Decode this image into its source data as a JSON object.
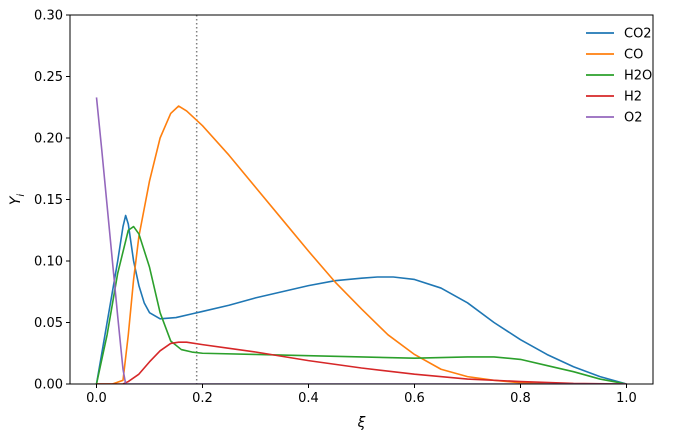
{
  "chart_data": {
    "type": "line",
    "xlabel": "ξ",
    "ylabel": "Y_i",
    "xlim": [
      -0.05,
      1.05
    ],
    "ylim": [
      0.0,
      0.3
    ],
    "xticks": [
      "0.0",
      "0.2",
      "0.4",
      "0.6",
      "0.8",
      "1.0"
    ],
    "yticks": [
      "0.00",
      "0.05",
      "0.10",
      "0.15",
      "0.20",
      "0.25",
      "0.30"
    ],
    "vline": 0.189,
    "legend_position": "top-right",
    "series": [
      {
        "name": "CO2",
        "color": "#1f77b4",
        "x": [
          0.0,
          0.02,
          0.04,
          0.05,
          0.055,
          0.06,
          0.07,
          0.08,
          0.09,
          0.1,
          0.12,
          0.15,
          0.18,
          0.2,
          0.25,
          0.3,
          0.35,
          0.4,
          0.45,
          0.5,
          0.53,
          0.56,
          0.6,
          0.65,
          0.7,
          0.75,
          0.8,
          0.85,
          0.9,
          0.95,
          1.0
        ],
        "values": [
          0.0,
          0.05,
          0.1,
          0.128,
          0.137,
          0.13,
          0.1,
          0.08,
          0.066,
          0.058,
          0.053,
          0.054,
          0.057,
          0.059,
          0.064,
          0.07,
          0.075,
          0.08,
          0.084,
          0.086,
          0.087,
          0.087,
          0.085,
          0.078,
          0.066,
          0.05,
          0.036,
          0.024,
          0.014,
          0.006,
          0.0
        ]
      },
      {
        "name": "CO",
        "color": "#ff7f0e",
        "x": [
          0.0,
          0.03,
          0.05,
          0.06,
          0.07,
          0.08,
          0.1,
          0.12,
          0.14,
          0.155,
          0.17,
          0.2,
          0.25,
          0.3,
          0.35,
          0.4,
          0.45,
          0.5,
          0.55,
          0.6,
          0.65,
          0.7,
          0.75,
          0.8,
          0.85,
          0.9,
          0.95,
          1.0
        ],
        "values": [
          0.0,
          0.0,
          0.003,
          0.04,
          0.085,
          0.12,
          0.165,
          0.2,
          0.22,
          0.226,
          0.222,
          0.21,
          0.186,
          0.16,
          0.134,
          0.108,
          0.083,
          0.061,
          0.04,
          0.024,
          0.012,
          0.006,
          0.003,
          0.001,
          0.0,
          0.0,
          0.0,
          0.0
        ]
      },
      {
        "name": "H2O",
        "color": "#2ca02c",
        "x": [
          0.0,
          0.02,
          0.04,
          0.06,
          0.07,
          0.08,
          0.1,
          0.12,
          0.14,
          0.16,
          0.18,
          0.2,
          0.3,
          0.4,
          0.5,
          0.6,
          0.7,
          0.75,
          0.8,
          0.85,
          0.9,
          0.95,
          1.0
        ],
        "values": [
          0.0,
          0.04,
          0.09,
          0.125,
          0.128,
          0.122,
          0.095,
          0.058,
          0.035,
          0.028,
          0.026,
          0.025,
          0.024,
          0.023,
          0.022,
          0.021,
          0.022,
          0.022,
          0.02,
          0.015,
          0.01,
          0.004,
          0.0
        ]
      },
      {
        "name": "H2",
        "color": "#d62728",
        "x": [
          0.0,
          0.03,
          0.05,
          0.06,
          0.08,
          0.1,
          0.12,
          0.14,
          0.155,
          0.17,
          0.2,
          0.25,
          0.3,
          0.4,
          0.5,
          0.6,
          0.7,
          0.8,
          0.9,
          1.0
        ],
        "values": [
          0.0,
          0.0,
          0.0,
          0.002,
          0.008,
          0.018,
          0.027,
          0.033,
          0.034,
          0.034,
          0.032,
          0.029,
          0.026,
          0.019,
          0.013,
          0.008,
          0.004,
          0.002,
          0.0005,
          0.0
        ]
      },
      {
        "name": "O2",
        "color": "#9467bd",
        "x": [
          0.0,
          0.01,
          0.02,
          0.03,
          0.04,
          0.05,
          0.055,
          0.06,
          0.1,
          0.2,
          0.4,
          0.6,
          0.8,
          1.0
        ],
        "values": [
          0.233,
          0.19,
          0.145,
          0.1,
          0.055,
          0.012,
          0.0,
          0.0,
          0.0,
          0.0,
          0.0,
          0.0,
          0.0,
          0.0
        ]
      }
    ]
  }
}
